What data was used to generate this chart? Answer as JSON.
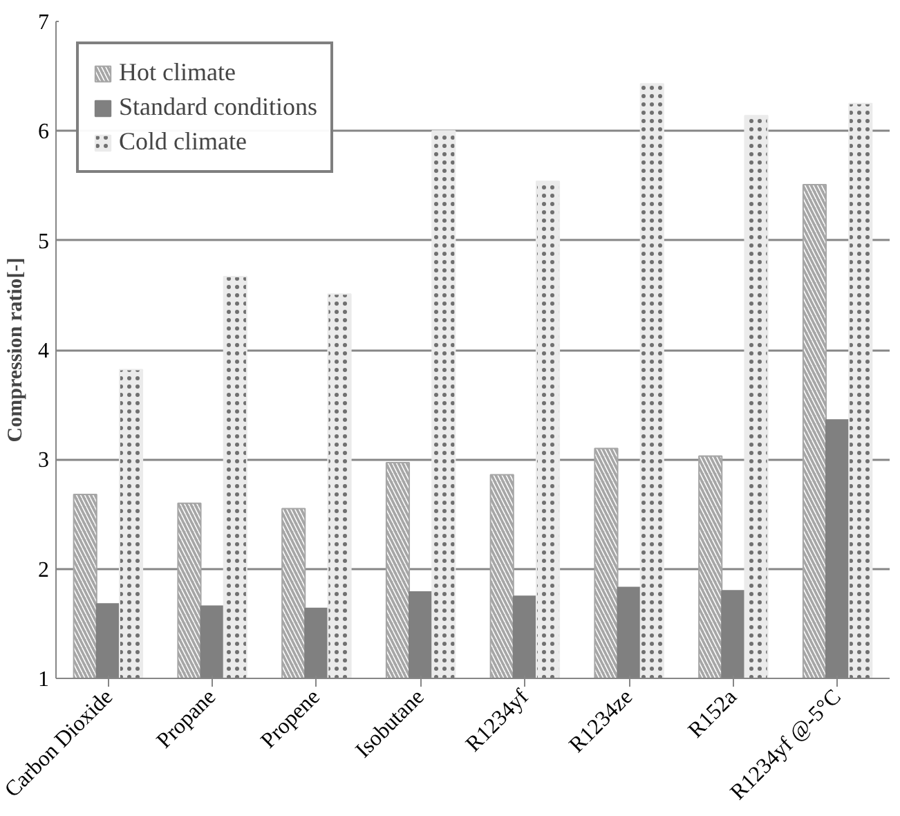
{
  "chart_data": {
    "type": "bar",
    "ylabel": "Compression ratio[-]",
    "categories": [
      "Carbon Dioxide",
      "Propane",
      "Propene",
      "Isobutane",
      "R1234yf",
      "R1234ze",
      "R152a",
      "R1234yf @-5°C"
    ],
    "series": [
      {
        "name": "Hot climate",
        "color": "#a6a6a6",
        "values": [
          2.68,
          2.6,
          2.55,
          2.97,
          2.86,
          3.1,
          3.03,
          5.51
        ]
      },
      {
        "name": "Standard conditions",
        "color": "#808080",
        "values": [
          1.68,
          1.66,
          1.64,
          1.79,
          1.75,
          1.83,
          1.8,
          3.36
        ]
      },
      {
        "name": "Cold climate",
        "color": "#ebebeb",
        "values": [
          3.82,
          4.67,
          4.51,
          6.0,
          5.54,
          6.43,
          6.14,
          6.25
        ]
      }
    ],
    "ylim": [
      1,
      7
    ],
    "yticks": [
      1,
      2,
      3,
      4,
      5,
      6,
      7
    ],
    "grid": "y",
    "legend": "top left"
  }
}
